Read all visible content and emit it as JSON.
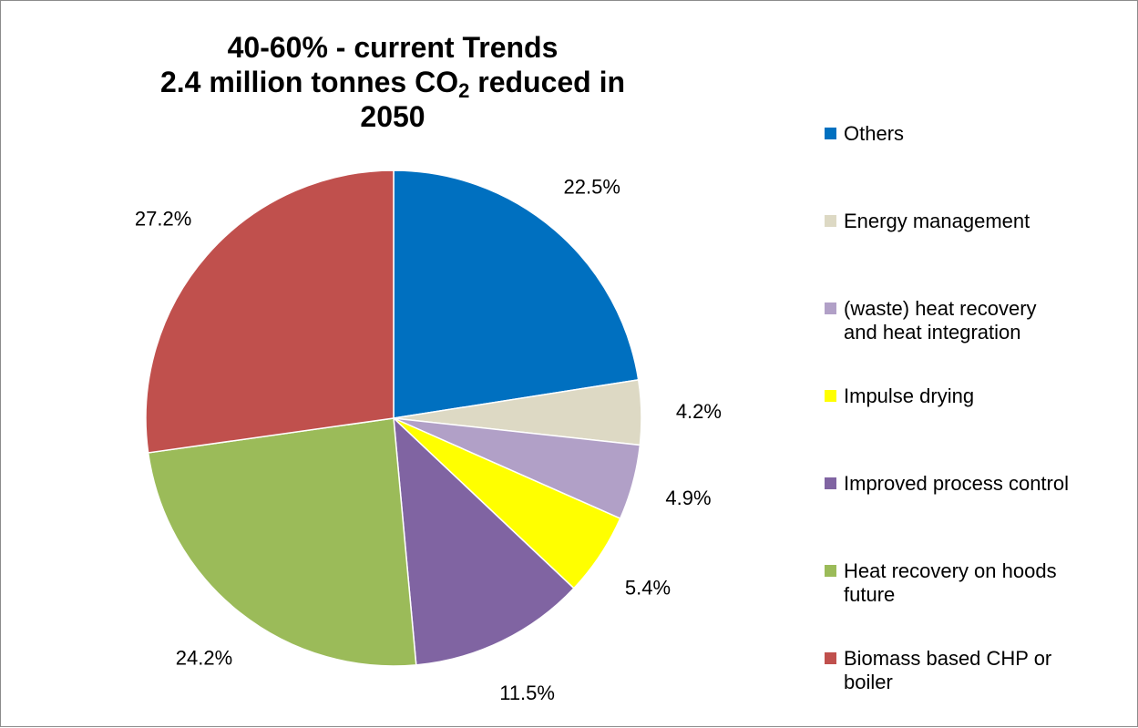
{
  "chart_data": {
    "type": "pie",
    "title_main": "40-60% - current Trends",
    "title_pre": "2.4 million tonnes CO",
    "title_sub": "2",
    "title_post": " reduced in 2050",
    "legend_position": "right",
    "slices": [
      {
        "name": "Others",
        "value": 22.5,
        "label": "22.5%",
        "color": "#0070C0"
      },
      {
        "name": "Energy management",
        "value": 4.2,
        "label": "4.2%",
        "color": "#DDD9C4"
      },
      {
        "name": "(waste) heat recovery\nand heat integration",
        "value": 4.9,
        "label": "4.9%",
        "color": "#B1A0C7"
      },
      {
        "name": "Impulse drying",
        "value": 5.4,
        "label": "5.4%",
        "color": "#FFFF00"
      },
      {
        "name": "Improved process control",
        "value": 11.5,
        "label": "11.5%",
        "color": "#8064A2"
      },
      {
        "name": "Heat recovery on hoods\nfuture",
        "value": 24.2,
        "label": "24.2%",
        "color": "#9BBB59"
      },
      {
        "name": "Biomass based CHP or\nboiler",
        "value": 27.2,
        "label": "27.2%",
        "color": "#C0504D"
      }
    ]
  }
}
